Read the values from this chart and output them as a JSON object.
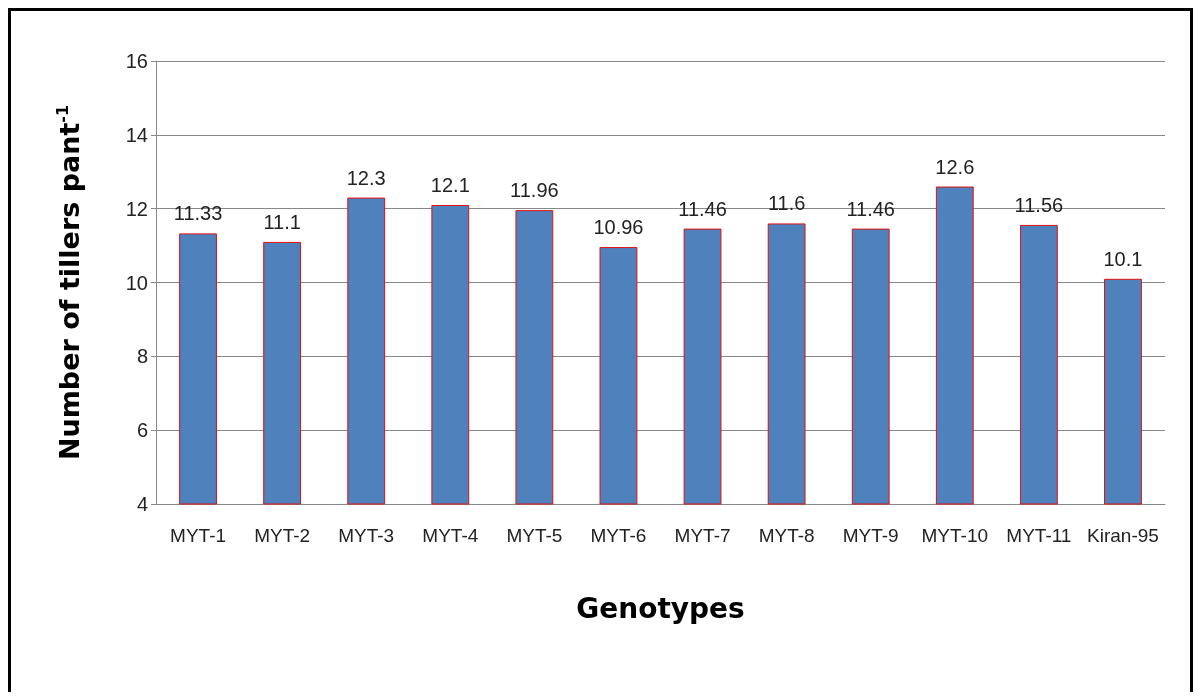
{
  "chart_data": {
    "type": "bar",
    "xlabel": "Genotypes",
    "ylabel": "Number of tillers pant$^{-1}$",
    "categories": [
      "MYT-1",
      "MYT-2",
      "MYT-3",
      "MYT-4",
      "MYT-5",
      "MYT-6",
      "MYT-7",
      "MYT-8",
      "MYT-9",
      "MYT-10",
      "MYT-11",
      "Kiran-95"
    ],
    "values": [
      11.33,
      11.1,
      12.3,
      12.1,
      11.96,
      10.96,
      11.46,
      11.6,
      11.46,
      12.6,
      11.56,
      10.1
    ],
    "color": "#4f81bd",
    "ylim": [
      4,
      16
    ],
    "yticks": [
      4,
      6,
      8,
      10,
      12,
      14,
      16
    ],
    "grid": "y",
    "data_labels": true
  }
}
